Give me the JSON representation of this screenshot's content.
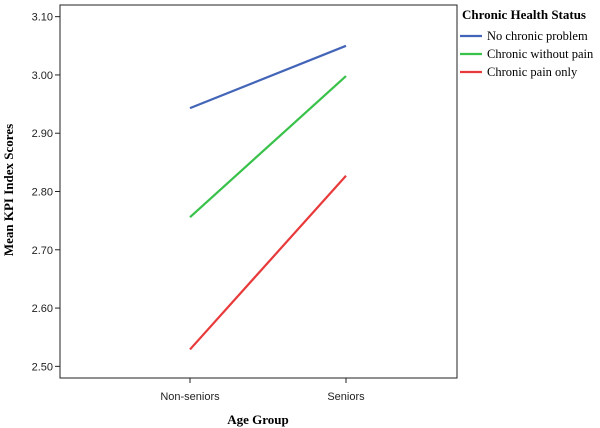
{
  "chart_data": {
    "type": "line",
    "title": "",
    "xlabel": "Age Group",
    "ylabel": "Mean KPI Index Scores",
    "categories": [
      "Non-seniors",
      "Seniors"
    ],
    "ylim": [
      2.48,
      3.12
    ],
    "yticks": [
      "2.50",
      "2.60",
      "2.70",
      "2.80",
      "2.90",
      "3.00",
      "3.10"
    ],
    "grid": false,
    "legend_title": "Chronic Health Status",
    "legend_position": "right",
    "series": [
      {
        "name": "No chronic problem",
        "color": "#4365b8",
        "values": [
          2.943,
          3.05
        ]
      },
      {
        "name": "Chronic without pain",
        "color": "#39c24a",
        "values": [
          2.756,
          2.998
        ]
      },
      {
        "name": "Chronic pain only",
        "color": "#e83a3a",
        "values": [
          2.529,
          2.827
        ]
      }
    ]
  }
}
